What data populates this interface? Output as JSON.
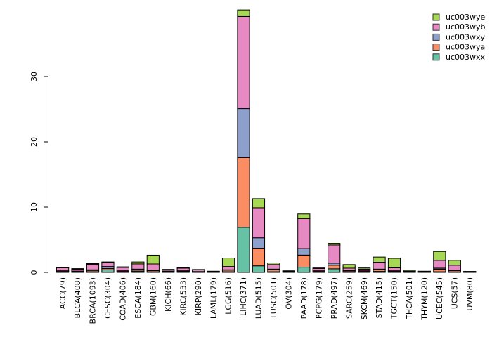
{
  "chart_data": {
    "type": "bar",
    "stacked": true,
    "title": "",
    "xlabel": "",
    "ylabel": "",
    "background": "#FFFFFF",
    "bar_border_color": "#000000",
    "axis_color": "#000000",
    "yticks": [
      0,
      10,
      20,
      30
    ],
    "ylim": [
      0,
      40.5
    ],
    "grid": false,
    "legend_position": "top-right",
    "legend_order_top_to_bottom": [
      "uc003wye",
      "uc003wyb",
      "uc003wxy",
      "uc003wya",
      "uc003wxx"
    ],
    "categories": [
      "ACC(79)",
      "BLCA(408)",
      "BRCA(1093)",
      "CESC(304)",
      "COAD(406)",
      "ESCA(184)",
      "GBM(160)",
      "KICH(66)",
      "KIRC(533)",
      "KIRP(290)",
      "LAML(179)",
      "LGG(516)",
      "LIHC(371)",
      "LUAD(515)",
      "LUSC(501)",
      "OV(304)",
      "PAAD(178)",
      "PCPG(179)",
      "PRAD(497)",
      "SARC(259)",
      "SKCM(469)",
      "STAD(415)",
      "TGCT(150)",
      "THCA(501)",
      "THYM(120)",
      "UCEC(545)",
      "UCS(57)",
      "UVM(80)"
    ],
    "series": [
      {
        "name": "uc003wxx",
        "color": "#66C2A5",
        "values": [
          0.08,
          0.05,
          0.1,
          0.4,
          0.08,
          0.15,
          0.08,
          0.05,
          0.1,
          0.05,
          0.02,
          0.1,
          6.9,
          1.0,
          0.1,
          0.03,
          0.8,
          0.08,
          0.55,
          0.1,
          0.08,
          0.15,
          0.1,
          0.05,
          0.02,
          0.1,
          0.05,
          0.02
        ]
      },
      {
        "name": "uc003wya",
        "color": "#FC8D62",
        "values": [
          0.12,
          0.1,
          0.2,
          0.2,
          0.12,
          0.2,
          0.18,
          0.1,
          0.1,
          0.05,
          0.03,
          0.25,
          10.7,
          2.7,
          0.3,
          0.05,
          1.85,
          0.12,
          0.55,
          0.15,
          0.12,
          0.3,
          0.1,
          0.05,
          0.03,
          0.4,
          0.2,
          0.02
        ]
      },
      {
        "name": "uc003wxy",
        "color": "#8DA0CB",
        "values": [
          0.05,
          0.05,
          0.1,
          0.3,
          0.05,
          0.15,
          0.08,
          0.05,
          0.05,
          0.03,
          0.02,
          0.05,
          7.5,
          1.6,
          0.1,
          0.02,
          1.0,
          0.05,
          0.3,
          0.05,
          0.05,
          0.05,
          0.05,
          0.02,
          0.02,
          0.15,
          0.05,
          0.01
        ]
      },
      {
        "name": "uc003wyb",
        "color": "#E78AC3",
        "values": [
          0.45,
          0.3,
          0.85,
          0.6,
          0.5,
          0.8,
          0.95,
          0.2,
          0.4,
          0.25,
          0.05,
          0.5,
          14.1,
          4.6,
          0.7,
          0.08,
          4.6,
          0.35,
          2.8,
          0.35,
          0.25,
          1.05,
          0.45,
          0.08,
          0.05,
          1.2,
          0.8,
          0.04
        ]
      },
      {
        "name": "uc003wye",
        "color": "#A6D854",
        "values": [
          0.1,
          0.08,
          0.1,
          0.1,
          0.1,
          0.3,
          1.35,
          0.05,
          0.05,
          0.05,
          0.03,
          1.3,
          1.0,
          1.4,
          0.25,
          0.03,
          0.7,
          0.08,
          0.25,
          0.55,
          0.18,
          0.8,
          1.45,
          0.15,
          0.03,
          1.35,
          0.75,
          0.02
        ]
      }
    ]
  }
}
